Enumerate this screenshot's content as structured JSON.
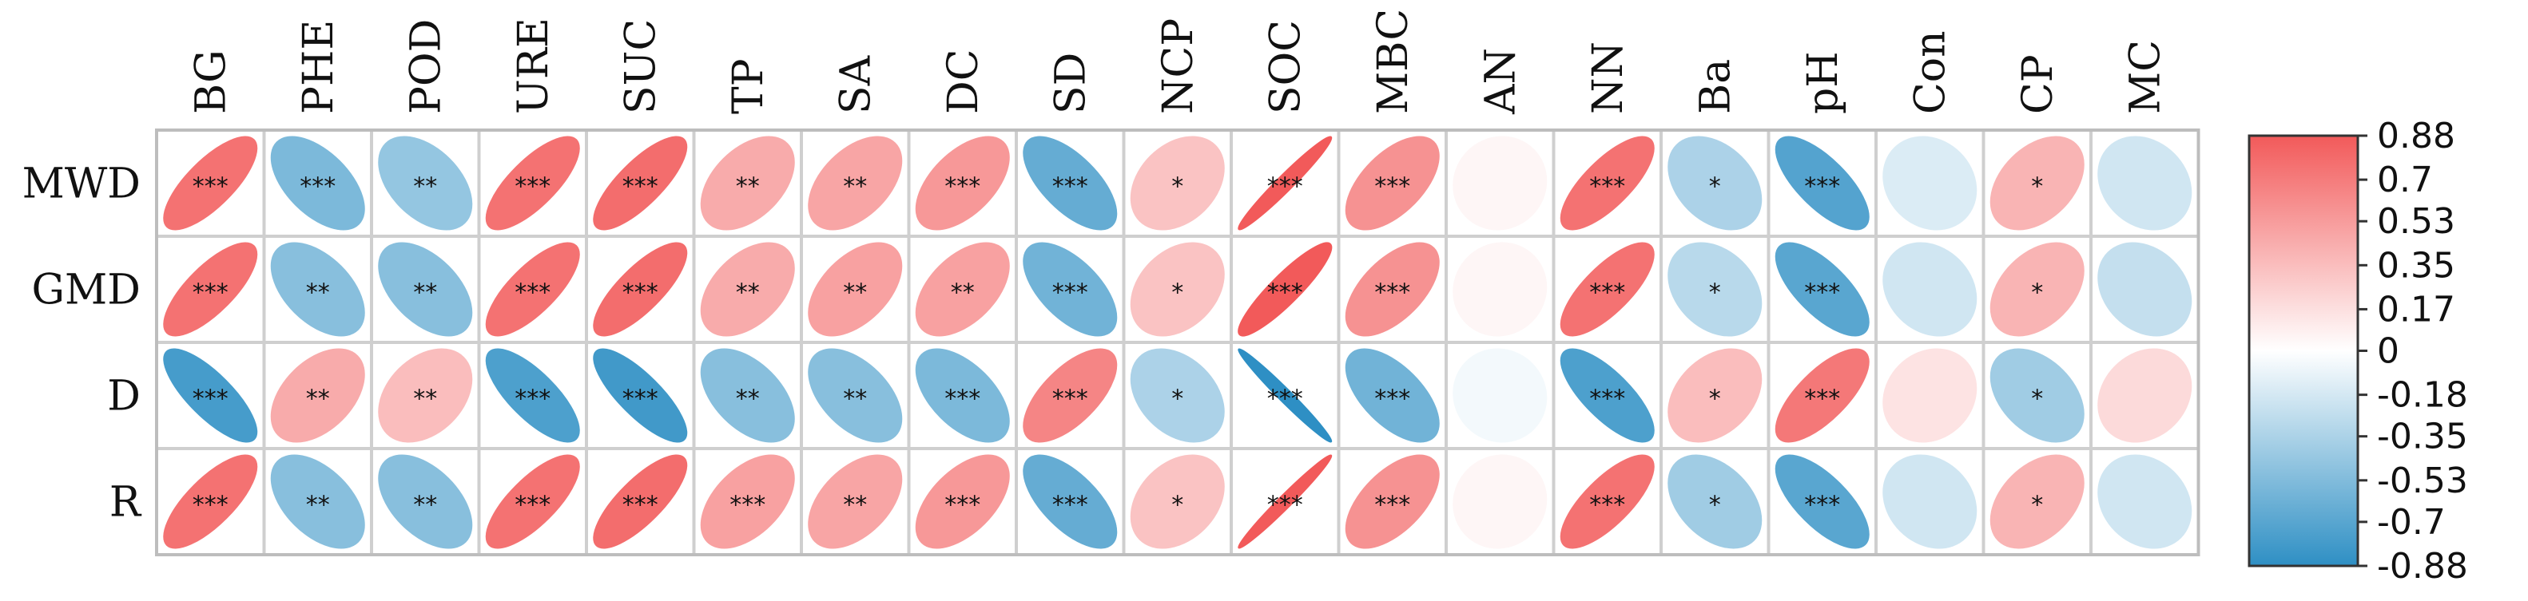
{
  "chart_data": {
    "type": "heatmap",
    "columns": [
      "BG",
      "PHE",
      "POD",
      "URE",
      "SUC",
      "TP",
      "SA",
      "DC",
      "SD",
      "NCP",
      "SOC",
      "MBC",
      "AN",
      "NN",
      "Ba",
      "pH",
      "Con",
      "CP",
      "MC"
    ],
    "rows": [
      "MWD",
      "GMD",
      "D",
      "R"
    ],
    "values": [
      [
        0.75,
        -0.55,
        -0.45,
        0.75,
        0.78,
        0.45,
        0.48,
        0.55,
        -0.65,
        0.32,
        0.97,
        0.58,
        0.05,
        0.75,
        -0.35,
        -0.72,
        -0.15,
        0.4,
        -0.2
      ],
      [
        0.75,
        -0.5,
        -0.5,
        0.75,
        0.78,
        0.45,
        0.5,
        0.5,
        -0.6,
        0.32,
        0.9,
        0.58,
        0.05,
        0.75,
        -0.3,
        -0.7,
        -0.2,
        0.4,
        -0.25
      ],
      [
        -0.78,
        0.45,
        0.35,
        -0.75,
        -0.8,
        -0.5,
        -0.5,
        -0.55,
        0.65,
        -0.35,
        -0.98,
        -0.6,
        -0.05,
        -0.75,
        0.35,
        0.72,
        0.15,
        -0.4,
        0.2
      ],
      [
        0.75,
        -0.5,
        -0.5,
        0.75,
        0.78,
        0.5,
        0.48,
        0.55,
        -0.65,
        0.32,
        0.98,
        0.58,
        0.05,
        0.75,
        -0.4,
        -0.7,
        -0.2,
        0.4,
        -0.2
      ]
    ],
    "significance": [
      [
        "***",
        "***",
        "**",
        "***",
        "***",
        "**",
        "**",
        "***",
        "***",
        "*",
        "***",
        "***",
        "",
        "***",
        "*",
        "***",
        "",
        "*",
        ""
      ],
      [
        "***",
        "**",
        "**",
        "***",
        "***",
        "**",
        "**",
        "**",
        "***",
        "*",
        "***",
        "***",
        "",
        "***",
        "*",
        "***",
        "",
        "*",
        ""
      ],
      [
        "***",
        "**",
        "**",
        "***",
        "***",
        "**",
        "**",
        "***",
        "***",
        "*",
        "***",
        "***",
        "",
        "***",
        "*",
        "***",
        "",
        "*",
        ""
      ],
      [
        "***",
        "**",
        "**",
        "***",
        "***",
        "***",
        "**",
        "***",
        "***",
        "*",
        "***",
        "***",
        "",
        "***",
        "*",
        "***",
        "",
        "*",
        ""
      ]
    ],
    "colorbar": {
      "min": -0.88,
      "max": 0.88,
      "ticks": [
        0.88,
        0.7,
        0.53,
        0.35,
        0.17,
        0,
        -0.18,
        -0.35,
        -0.53,
        -0.7,
        -0.88
      ],
      "tick_labels": [
        "0.88",
        "0.7",
        "0.53",
        "0.35",
        "0.17",
        "0",
        "-0.18",
        "-0.35",
        "-0.53",
        "-0.7",
        "-0.88"
      ],
      "color_high": "#f25a5a",
      "color_mid": "#ffffff",
      "color_low": "#2e8fc4"
    },
    "legend_position": "right",
    "title": "",
    "xlabel": "",
    "ylabel": ""
  }
}
